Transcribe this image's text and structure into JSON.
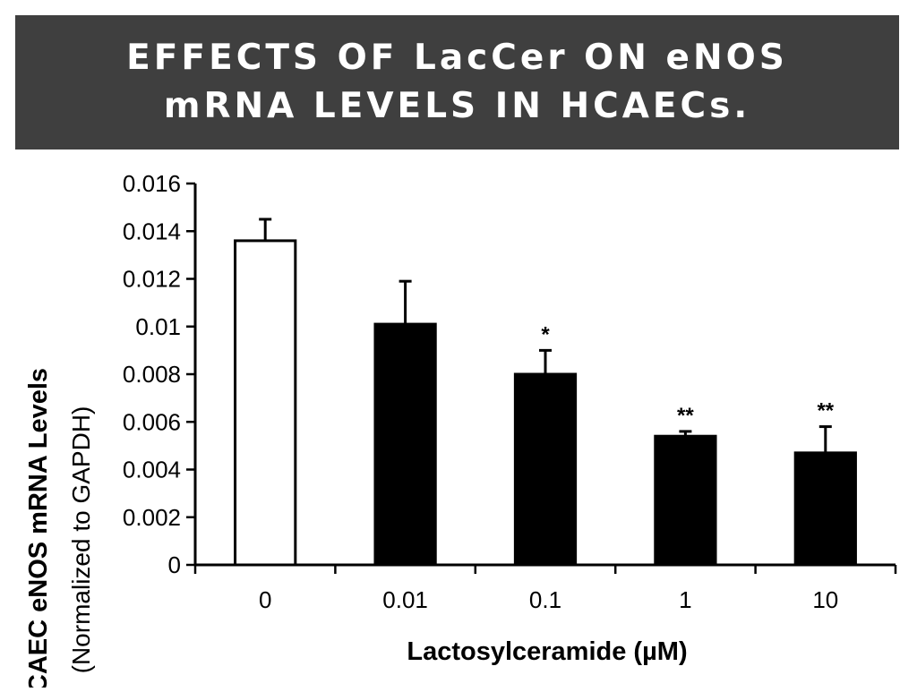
{
  "slide": {
    "title": "EFFECTS OF LacCer ON eNOS mRNA LEVELS IN HCAECs."
  },
  "chart_data": {
    "type": "bar",
    "categories": [
      "0",
      "0.01",
      "0.1",
      "1",
      "10"
    ],
    "values": [
      0.0136,
      0.0101,
      0.008,
      0.0054,
      0.0047
    ],
    "error_plus": [
      0.0009,
      0.0018,
      0.001,
      0.0002,
      0.0011
    ],
    "significance": [
      "",
      "",
      "*",
      "**",
      "**"
    ],
    "bar_fills": [
      "#ffffff",
      "#000000",
      "#000000",
      "#000000",
      "#000000"
    ],
    "xlabel": "Lactosylceramide (µM)",
    "ylabel": "HCAEC eNOS mRNA Levels",
    "ylabel_sub": "(Normalized to GAPDH)",
    "ylim": [
      0,
      0.016
    ],
    "yticks": [
      "0",
      "0.002",
      "0.004",
      "0.006",
      "0.008",
      "0.01",
      "0.012",
      "0.014",
      "0.016"
    ],
    "grid": false,
    "legend": "none"
  }
}
